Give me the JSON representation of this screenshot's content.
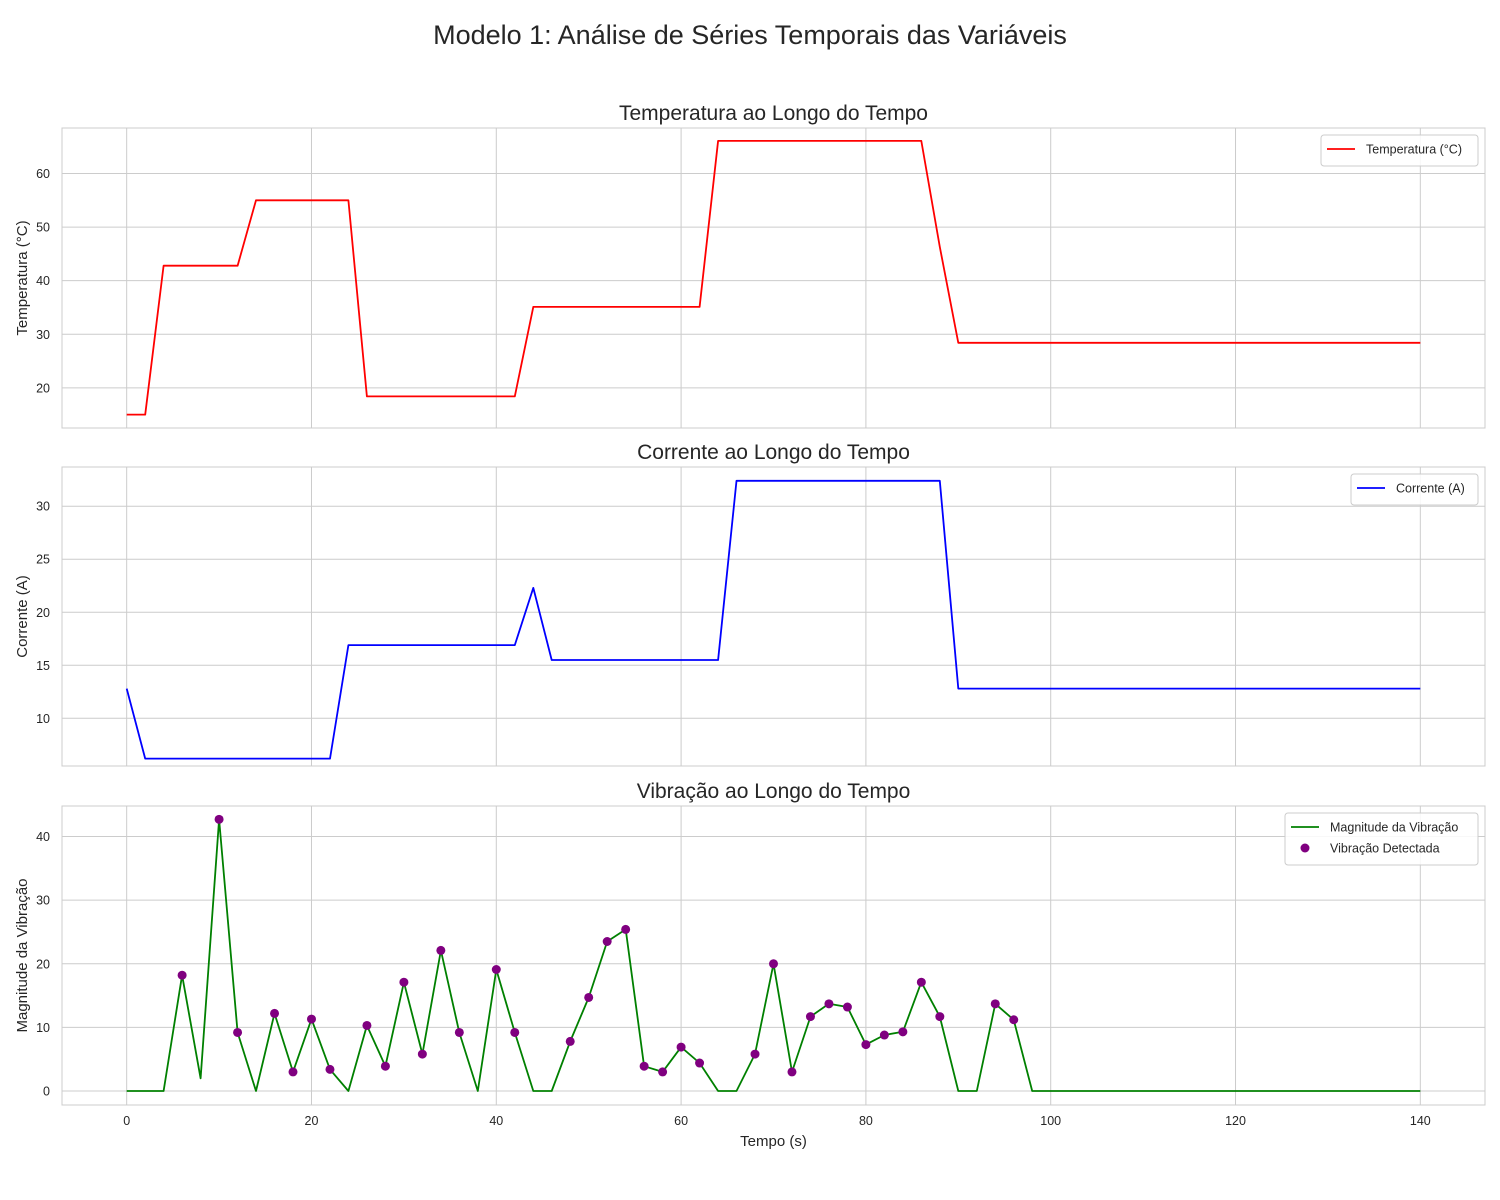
{
  "figure": {
    "suptitle": "Modelo 1: Análise de Séries Temporais das Variáveis",
    "shared_xlabel": "Tempo (s)"
  },
  "chart_data": [
    {
      "type": "line",
      "title": "Temperatura ao Longo do Tempo",
      "xlabel": "",
      "ylabel": "Temperatura (°C)",
      "xlim": [
        -7,
        147
      ],
      "ylim": [
        12.5,
        68.5
      ],
      "xticks": [
        0,
        20,
        40,
        60,
        80,
        100,
        120,
        140
      ],
      "xtick_labels_visible": false,
      "yticks": [
        20,
        30,
        40,
        50,
        60
      ],
      "grid": true,
      "legend": "top-right",
      "series": [
        {
          "name": "Temperatura (°C)",
          "color": "#ff0000",
          "x": [
            0,
            2,
            4,
            6,
            8,
            10,
            12,
            14,
            16,
            18,
            20,
            22,
            24,
            26,
            28,
            30,
            32,
            34,
            36,
            38,
            40,
            42,
            44,
            46,
            48,
            50,
            52,
            54,
            56,
            58,
            60,
            62,
            64,
            66,
            68,
            70,
            72,
            74,
            76,
            78,
            80,
            82,
            84,
            86,
            88,
            90,
            140
          ],
          "y": [
            15,
            15,
            42.8,
            42.8,
            42.8,
            42.8,
            42.8,
            55,
            55,
            55,
            55,
            55,
            55,
            18.4,
            18.4,
            18.4,
            18.4,
            18.4,
            18.4,
            18.4,
            18.4,
            18.4,
            35.1,
            35.1,
            35.1,
            35.1,
            35.1,
            35.1,
            35.1,
            35.1,
            35.1,
            35.1,
            66.1,
            66.1,
            66.1,
            66.1,
            66.1,
            66.1,
            66.1,
            66.1,
            66.1,
            66.1,
            66.1,
            66.1,
            46.3,
            28.4,
            28.4
          ]
        }
      ]
    },
    {
      "type": "line",
      "title": "Corrente ao Longo do Tempo",
      "xlabel": "",
      "ylabel": "Corrente (A)",
      "xlim": [
        -7,
        147
      ],
      "ylim": [
        5.5,
        33.7
      ],
      "xticks": [
        0,
        20,
        40,
        60,
        80,
        100,
        120,
        140
      ],
      "xtick_labels_visible": false,
      "yticks": [
        10,
        15,
        20,
        25,
        30
      ],
      "grid": true,
      "legend": "top-right",
      "series": [
        {
          "name": "Corrente (A)",
          "color": "#0000ff",
          "x": [
            0,
            2,
            4,
            6,
            8,
            10,
            12,
            14,
            16,
            18,
            20,
            22,
            24,
            26,
            28,
            30,
            32,
            34,
            36,
            38,
            40,
            42,
            44,
            46,
            48,
            50,
            52,
            54,
            56,
            58,
            60,
            62,
            64,
            66,
            68,
            70,
            72,
            74,
            76,
            78,
            80,
            82,
            84,
            86,
            88,
            90,
            140
          ],
          "y": [
            12.8,
            6.2,
            6.2,
            6.2,
            6.2,
            6.2,
            6.2,
            6.2,
            6.2,
            6.2,
            6.2,
            6.2,
            16.9,
            16.9,
            16.9,
            16.9,
            16.9,
            16.9,
            16.9,
            16.9,
            16.9,
            16.9,
            22.3,
            15.5,
            15.5,
            15.5,
            15.5,
            15.5,
            15.5,
            15.5,
            15.5,
            15.5,
            15.5,
            32.4,
            32.4,
            32.4,
            32.4,
            32.4,
            32.4,
            32.4,
            32.4,
            32.4,
            32.4,
            32.4,
            32.4,
            12.8,
            12.8
          ]
        }
      ]
    },
    {
      "type": "line",
      "title": "Vibração ao Longo do Tempo",
      "xlabel": "Tempo (s)",
      "ylabel": "Magnitude da Vibração",
      "xlim": [
        -7,
        147
      ],
      "ylim": [
        -2.2,
        44.8
      ],
      "xticks": [
        0,
        20,
        40,
        60,
        80,
        100,
        120,
        140
      ],
      "xtick_labels_visible": true,
      "yticks": [
        0,
        10,
        20,
        30,
        40
      ],
      "grid": true,
      "legend": "top-right",
      "series": [
        {
          "name": "Magnitude da Vibração",
          "color": "#008000",
          "mark": "line",
          "x": [
            0,
            2,
            4,
            6,
            8,
            10,
            12,
            14,
            16,
            18,
            20,
            22,
            24,
            26,
            28,
            30,
            32,
            34,
            36,
            38,
            40,
            42,
            44,
            46,
            48,
            50,
            52,
            54,
            56,
            58,
            60,
            62,
            64,
            66,
            68,
            70,
            72,
            74,
            76,
            78,
            80,
            82,
            84,
            86,
            88,
            90,
            92,
            94,
            96,
            98,
            140
          ],
          "y": [
            0,
            0,
            0,
            18.2,
            2,
            42.7,
            9.2,
            0,
            12.2,
            3,
            11.3,
            3.4,
            0,
            10.3,
            3.9,
            17.1,
            5.8,
            22.1,
            9.2,
            0,
            19.1,
            9.2,
            0,
            0,
            7.8,
            14.7,
            23.5,
            25.4,
            3.9,
            3,
            6.9,
            4.4,
            0,
            0,
            5.8,
            20,
            3,
            11.7,
            13.7,
            13.2,
            7.3,
            8.8,
            9.3,
            17.1,
            11.7,
            0,
            0,
            13.7,
            11.2,
            0,
            0
          ]
        },
        {
          "name": "Vibração Detectada",
          "color": "#800080",
          "mark": "scatter",
          "x": [
            6,
            10,
            12,
            16,
            18,
            20,
            22,
            26,
            28,
            30,
            32,
            34,
            36,
            40,
            42,
            48,
            50,
            52,
            54,
            56,
            58,
            60,
            62,
            68,
            70,
            72,
            74,
            76,
            78,
            80,
            82,
            84,
            86,
            88,
            94,
            96
          ],
          "y": [
            18.2,
            42.7,
            9.2,
            12.2,
            3,
            11.3,
            3.4,
            10.3,
            3.9,
            17.1,
            5.8,
            22.1,
            9.2,
            19.1,
            9.2,
            7.8,
            14.7,
            23.5,
            25.4,
            3.9,
            3,
            6.9,
            4.4,
            5.8,
            20,
            3,
            11.7,
            13.7,
            13.2,
            7.3,
            8.8,
            9.3,
            17.1,
            11.7,
            13.7,
            11.2
          ]
        }
      ]
    }
  ]
}
